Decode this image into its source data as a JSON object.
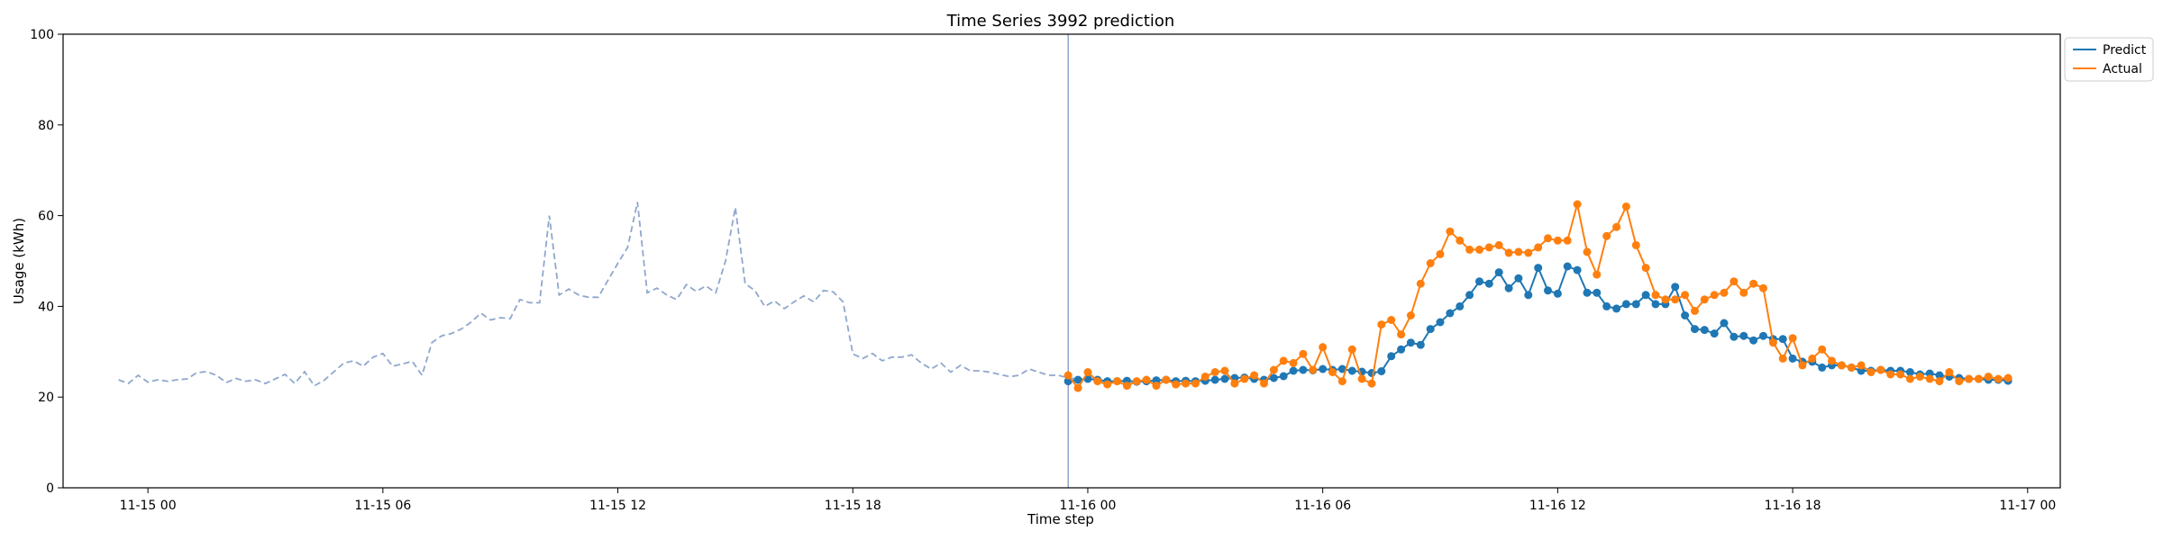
{
  "chart_data": {
    "type": "line",
    "title": "Time Series 3992 prediction",
    "xlabel": "Time step",
    "ylabel": "Usage (kWh)",
    "ylim": [
      0,
      100
    ],
    "xlim": [
      "2023-11-14 21:50",
      "2023-11-17 00:50"
    ],
    "x_tick_labels": [
      "11-15 00",
      "11-15 06",
      "11-15 12",
      "11-15 18",
      "11-16 00",
      "11-16 06",
      "11-16 12",
      "11-16 18",
      "11-17 00"
    ],
    "x_ticks": [
      "2023-11-15 00:00",
      "2023-11-15 06:00",
      "2023-11-15 12:00",
      "2023-11-15 18:00",
      "2023-11-16 00:00",
      "2023-11-16 06:00",
      "2023-11-16 12:00",
      "2023-11-16 18:00",
      "2023-11-17 00:00"
    ],
    "y_ticks": [
      0,
      20,
      40,
      60,
      80,
      100
    ],
    "grid": false,
    "legend_position": "outside top-right",
    "vertical_line_at": "2023-11-15 23:30",
    "history": {
      "start": "2023-11-14 23:15",
      "step_minutes": 15,
      "color": "#8fa8cc",
      "style": "dashed",
      "values": [
        23.8,
        23.0,
        24.8,
        23.3,
        23.8,
        23.5,
        23.8,
        24.0,
        25.4,
        25.6,
        24.8,
        23.2,
        24.1,
        23.5,
        23.8,
        23.0,
        24.0,
        25.0,
        23.0,
        25.6,
        22.5,
        23.7,
        25.6,
        27.5,
        28.0,
        26.8,
        28.8,
        29.6,
        26.8,
        27.3,
        27.9,
        24.8,
        32.0,
        33.5,
        34.0,
        35.0,
        36.5,
        38.5,
        37.0,
        37.5,
        37.3,
        41.5,
        40.8,
        40.8,
        60.0,
        42.5,
        43.8,
        42.5,
        42.0,
        42.0,
        45.8,
        49.5,
        53.0,
        63.0,
        43.0,
        44.0,
        42.5,
        41.5,
        44.8,
        43.3,
        44.5,
        43.0,
        50.0,
        61.8,
        45.0,
        43.5,
        40.0,
        41.2,
        39.5,
        41.0,
        42.3,
        41.0,
        43.5,
        43.2,
        41.0,
        29.5,
        28.5,
        29.6,
        28.0,
        28.8,
        28.8,
        29.3,
        27.5,
        26.2,
        27.5,
        25.5,
        27.0,
        25.8,
        25.8,
        25.5,
        25.0,
        24.5,
        24.8,
        26.2,
        25.5,
        24.8,
        24.8,
        24.2,
        24.0,
        23.8
      ]
    },
    "forecast_x": {
      "start": "2023-11-15 23:30",
      "step_minutes": 15
    },
    "series": [
      {
        "name": "Predict",
        "color": "#1f77b4",
        "values": [
          23.5,
          23.8,
          24.0,
          23.8,
          23.5,
          23.5,
          23.6,
          23.4,
          23.5,
          23.7,
          23.8,
          23.5,
          23.6,
          23.5,
          23.6,
          23.8,
          24.0,
          24.2,
          24.3,
          24.0,
          23.8,
          24.2,
          24.6,
          25.8,
          26.0,
          25.9,
          26.2,
          26.0,
          26.2,
          25.8,
          25.6,
          25.3,
          25.7,
          29.0,
          30.5,
          32.0,
          31.5,
          35.0,
          36.5,
          38.5,
          40.0,
          42.5,
          45.5,
          45.0,
          47.5,
          44.0,
          46.2,
          42.5,
          48.5,
          43.5,
          42.8,
          48.8,
          48.0,
          43.0,
          43.0,
          40.0,
          39.5,
          40.5,
          40.5,
          42.5,
          40.5,
          40.5,
          44.3,
          38.0,
          35.0,
          34.8,
          34.0,
          36.3,
          33.3,
          33.5,
          32.5,
          33.5,
          32.8,
          32.8,
          28.5,
          27.8,
          27.8,
          26.5,
          27.0,
          27.0,
          26.5,
          25.8,
          25.8,
          26.0,
          25.8,
          25.8,
          25.5,
          25.0,
          25.2,
          24.8,
          24.5,
          24.2,
          24.0,
          24.0,
          23.8,
          23.8,
          23.6
        ]
      },
      {
        "name": "Actual",
        "color": "#ff7f0e",
        "values": [
          24.8,
          22.0,
          25.5,
          23.5,
          22.8,
          23.5,
          22.5,
          23.5,
          23.8,
          22.5,
          23.8,
          22.8,
          23.0,
          23.0,
          24.5,
          25.5,
          25.8,
          23.0,
          24.0,
          24.8,
          23.0,
          26.0,
          28.0,
          27.5,
          29.5,
          26.0,
          31.0,
          25.5,
          23.5,
          30.5,
          24.0,
          23.0,
          36.0,
          37.0,
          33.8,
          38.0,
          45.0,
          49.5,
          51.5,
          56.5,
          54.5,
          52.5,
          52.5,
          53.0,
          53.5,
          51.8,
          52.0,
          51.8,
          53.0,
          55.0,
          54.5,
          54.5,
          62.5,
          52.0,
          47.0,
          55.5,
          57.5,
          62.0,
          53.5,
          48.5,
          42.5,
          41.5,
          41.5,
          42.5,
          39.0,
          41.5,
          42.5,
          43.0,
          45.5,
          43.0,
          45.0,
          44.0,
          32.0,
          28.5,
          33.0,
          27.0,
          28.5,
          30.5,
          28.0,
          27.0,
          26.5,
          27.0,
          25.5,
          26.0,
          25.0,
          25.0,
          24.0,
          24.5,
          24.0,
          23.5,
          25.5,
          23.5,
          24.0,
          24.0,
          24.5,
          24.0,
          24.2
        ]
      }
    ]
  }
}
